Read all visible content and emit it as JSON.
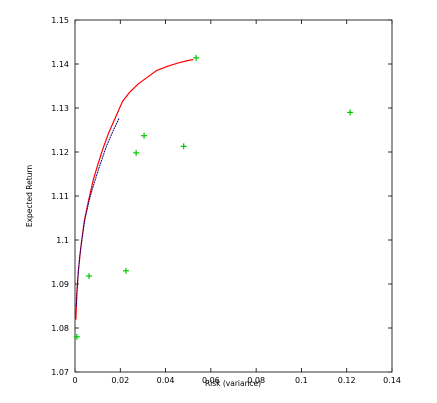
{
  "chart_data": {
    "type": "line",
    "xlabel": "Risk (variance)",
    "ylabel": "Expected Return",
    "xlim": [
      0,
      0.14
    ],
    "ylim": [
      1.07,
      1.15
    ],
    "x_ticks": [
      0,
      0.02,
      0.04,
      0.06,
      0.08,
      0.1,
      0.12,
      0.14
    ],
    "x_tick_labels": [
      "0",
      "0.02",
      "0.04",
      "0.06",
      "0.08",
      "0.1",
      "0.12",
      "0.14"
    ],
    "y_ticks": [
      1.07,
      1.08,
      1.09,
      1.1,
      1.11,
      1.12,
      1.13,
      1.14,
      1.15
    ],
    "y_tick_labels": [
      "1.07",
      "1.08",
      "1.09",
      "1.1",
      "1.11",
      "1.12",
      "1.13",
      "1.14",
      "1.15"
    ],
    "grid": false,
    "legend": "none",
    "series": [
      {
        "style": "solid-line",
        "color": "#ff0000",
        "points": [
          [
            0.0004,
            1.082
          ],
          [
            0.0008,
            1.088
          ],
          [
            0.0015,
            1.093
          ],
          [
            0.0025,
            1.098
          ],
          [
            0.004,
            1.104
          ],
          [
            0.006,
            1.109
          ],
          [
            0.008,
            1.1135
          ],
          [
            0.01,
            1.117
          ],
          [
            0.0125,
            1.121
          ],
          [
            0.015,
            1.1245
          ],
          [
            0.018,
            1.128
          ],
          [
            0.021,
            1.1315
          ],
          [
            0.024,
            1.1335
          ],
          [
            0.028,
            1.1355
          ],
          [
            0.032,
            1.137
          ],
          [
            0.036,
            1.1385
          ],
          [
            0.041,
            1.1395
          ],
          [
            0.046,
            1.1403
          ],
          [
            0.05,
            1.1408
          ],
          [
            0.052,
            1.141
          ]
        ]
      },
      {
        "style": "dotted-line",
        "color": "#00008b",
        "points": [
          [
            0.0006,
            1.085
          ],
          [
            0.0012,
            1.091
          ],
          [
            0.002,
            1.096
          ],
          [
            0.003,
            1.1
          ],
          [
            0.0045,
            1.105
          ],
          [
            0.0065,
            1.1095
          ],
          [
            0.0085,
            1.113
          ],
          [
            0.011,
            1.117
          ],
          [
            0.014,
            1.1215
          ],
          [
            0.017,
            1.125
          ],
          [
            0.0195,
            1.1277
          ]
        ]
      },
      {
        "style": "markers",
        "marker": "plus",
        "color": "#00c800",
        "points": [
          [
            0.0008,
            1.078
          ],
          [
            0.0062,
            1.0918
          ],
          [
            0.0225,
            1.093
          ],
          [
            0.027,
            1.1198
          ],
          [
            0.0305,
            1.1237
          ],
          [
            0.048,
            1.1213
          ],
          [
            0.0535,
            1.1414
          ],
          [
            0.1215,
            1.129
          ]
        ]
      }
    ]
  }
}
